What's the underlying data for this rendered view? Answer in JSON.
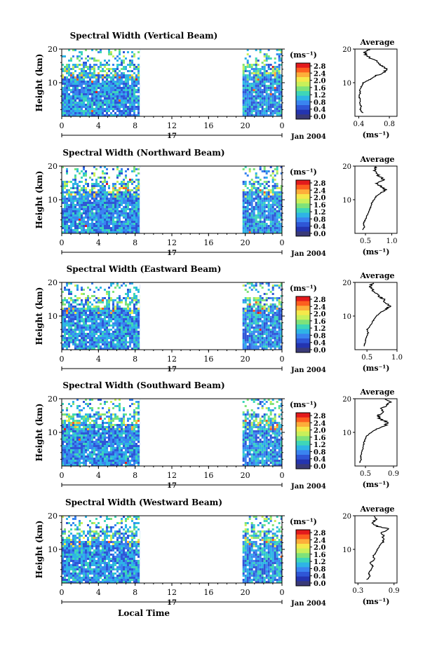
{
  "figure": {
    "date_label": "Jan 2004",
    "day_label": "17",
    "xlabel": "Local Time",
    "colorbar_unit": "(ms⁻¹)",
    "colorbar_ticks": [
      "2.8",
      "2.4",
      "2.0",
      "1.6",
      "1.2",
      "0.8",
      "0.4",
      "0.0"
    ],
    "colorbar_colors": [
      "#e31a1c",
      "#fd5f1f",
      "#fdae3a",
      "#f5e84a",
      "#c8f05a",
      "#7ee27a",
      "#3ed6b8",
      "#2eb4e6",
      "#3a84f0",
      "#2f56d6",
      "#2434b0",
      "#3a3a78"
    ],
    "avg_title": "Average",
    "avg_xlabel": "(ms⁻¹)"
  },
  "chart_data": [
    {
      "type": "heatmap",
      "title": "Spectral Width (Vertical Beam)",
      "ylabel": "Height (km)",
      "xlabel": "Local Time",
      "x_ticks": [
        "0",
        "4",
        "8",
        "12",
        "16",
        "20",
        "0"
      ],
      "xlim": [
        0,
        24
      ],
      "y_ticks": [
        "10",
        "20"
      ],
      "ylim": [
        0,
        20
      ],
      "data_intervals_hours": [
        [
          0,
          8.5
        ],
        [
          19.7,
          24
        ]
      ],
      "colorbar": {
        "unit": "ms-1",
        "range": [
          0.0,
          3.0
        ]
      },
      "average_profile": {
        "title": "Average",
        "x_ticks": [
          "0.4",
          "0.8"
        ],
        "xlim": [
          0.35,
          0.9
        ],
        "heights_km": [
          1,
          2,
          3,
          4,
          5,
          6,
          7,
          8,
          9,
          10,
          11,
          12,
          13,
          14,
          15,
          16,
          17,
          18,
          19,
          20
        ],
        "values": [
          0.45,
          0.42,
          0.43,
          0.41,
          0.42,
          0.4,
          0.42,
          0.41,
          0.44,
          0.46,
          0.55,
          0.62,
          0.72,
          0.78,
          0.7,
          0.66,
          0.58,
          0.5,
          0.48,
          0.55
        ]
      }
    },
    {
      "type": "heatmap",
      "title": "Spectral Width (Northward Beam)",
      "ylabel": "Height (km)",
      "xlabel": "Local Time",
      "x_ticks": [
        "0",
        "4",
        "8",
        "12",
        "16",
        "20",
        "0"
      ],
      "xlim": [
        0,
        24
      ],
      "y_ticks": [
        "10",
        "20"
      ],
      "ylim": [
        0,
        20
      ],
      "data_intervals_hours": [
        [
          0,
          8.5
        ],
        [
          19.7,
          24
        ]
      ],
      "colorbar": {
        "unit": "ms-1",
        "range": [
          0.0,
          3.0
        ]
      },
      "average_profile": {
        "title": "Average",
        "x_ticks": [
          "0.5",
          "1.0"
        ],
        "xlim": [
          0.3,
          1.1
        ],
        "heights_km": [
          1,
          2,
          3,
          4,
          5,
          6,
          7,
          8,
          9,
          10,
          11,
          12,
          13,
          14,
          15,
          16,
          17,
          18,
          19,
          20
        ],
        "values": [
          0.45,
          0.48,
          0.46,
          0.5,
          0.52,
          0.55,
          0.58,
          0.6,
          0.62,
          0.66,
          0.7,
          0.8,
          0.88,
          0.78,
          0.72,
          0.85,
          0.75,
          0.7,
          0.68,
          0.72
        ]
      }
    },
    {
      "type": "heatmap",
      "title": "Spectral Width (Eastward Beam)",
      "ylabel": "Height (km)",
      "xlabel": "Local Time",
      "x_ticks": [
        "0",
        "4",
        "8",
        "12",
        "16",
        "20",
        "0"
      ],
      "xlim": [
        0,
        24
      ],
      "y_ticks": [
        "10",
        "20"
      ],
      "ylim": [
        0,
        20
      ],
      "data_intervals_hours": [
        [
          0,
          8.5
        ],
        [
          19.7,
          24
        ]
      ],
      "colorbar": {
        "unit": "ms-1",
        "range": [
          0.0,
          3.0
        ]
      },
      "average_profile": {
        "title": "Average",
        "x_ticks": [
          "0.5",
          "1.0"
        ],
        "xlim": [
          0.3,
          1.0
        ],
        "heights_km": [
          1,
          2,
          3,
          4,
          5,
          6,
          7,
          8,
          9,
          10,
          11,
          12,
          13,
          14,
          15,
          16,
          17,
          18,
          19,
          20
        ],
        "values": [
          0.45,
          0.47,
          0.48,
          0.5,
          0.52,
          0.5,
          0.55,
          0.58,
          0.62,
          0.66,
          0.72,
          0.82,
          0.88,
          0.8,
          0.78,
          0.7,
          0.62,
          0.58,
          0.55,
          0.6
        ]
      }
    },
    {
      "type": "heatmap",
      "title": "Spectral Width (Southward Beam)",
      "ylabel": "Height (km)",
      "xlabel": "Local Time",
      "x_ticks": [
        "0",
        "4",
        "8",
        "12",
        "16",
        "20",
        "0"
      ],
      "xlim": [
        0,
        24
      ],
      "y_ticks": [
        "10",
        "20"
      ],
      "ylim": [
        0,
        20
      ],
      "data_intervals_hours": [
        [
          0,
          8.5
        ],
        [
          19.7,
          24
        ]
      ],
      "colorbar": {
        "unit": "ms-1",
        "range": [
          0.0,
          3.0
        ]
      },
      "average_profile": {
        "title": "Average",
        "x_ticks": [
          "0.5",
          "0.9"
        ],
        "xlim": [
          0.35,
          0.95
        ],
        "heights_km": [
          1,
          2,
          3,
          4,
          5,
          6,
          7,
          8,
          9,
          10,
          11,
          12,
          13,
          14,
          15,
          16,
          17,
          18,
          19,
          20
        ],
        "values": [
          0.42,
          0.44,
          0.43,
          0.45,
          0.46,
          0.47,
          0.48,
          0.5,
          0.52,
          0.58,
          0.66,
          0.78,
          0.82,
          0.7,
          0.68,
          0.75,
          0.72,
          0.8,
          0.85,
          0.78
        ]
      }
    },
    {
      "type": "heatmap",
      "title": "Spectral Width (Westward Beam)",
      "ylabel": "Height (km)",
      "xlabel": "Local Time",
      "x_ticks": [
        "0",
        "4",
        "8",
        "12",
        "16",
        "20",
        "0"
      ],
      "xlim": [
        0,
        24
      ],
      "y_ticks": [
        "10",
        "20"
      ],
      "ylim": [
        0,
        20
      ],
      "data_intervals_hours": [
        [
          0,
          8.5
        ],
        [
          19.7,
          24
        ]
      ],
      "colorbar": {
        "unit": "ms-1",
        "range": [
          0.0,
          3.0
        ]
      },
      "average_profile": {
        "title": "Average",
        "x_ticks": [
          "0.3",
          "0.9"
        ],
        "xlim": [
          0.25,
          0.95
        ],
        "heights_km": [
          1,
          2,
          3,
          4,
          5,
          6,
          7,
          8,
          9,
          10,
          11,
          12,
          13,
          14,
          15,
          16,
          17,
          18,
          19,
          20
        ],
        "values": [
          0.45,
          0.5,
          0.48,
          0.52,
          0.55,
          0.5,
          0.58,
          0.55,
          0.6,
          0.62,
          0.66,
          0.7,
          0.75,
          0.72,
          0.68,
          0.82,
          0.6,
          0.55,
          0.62,
          0.58
        ]
      }
    }
  ]
}
